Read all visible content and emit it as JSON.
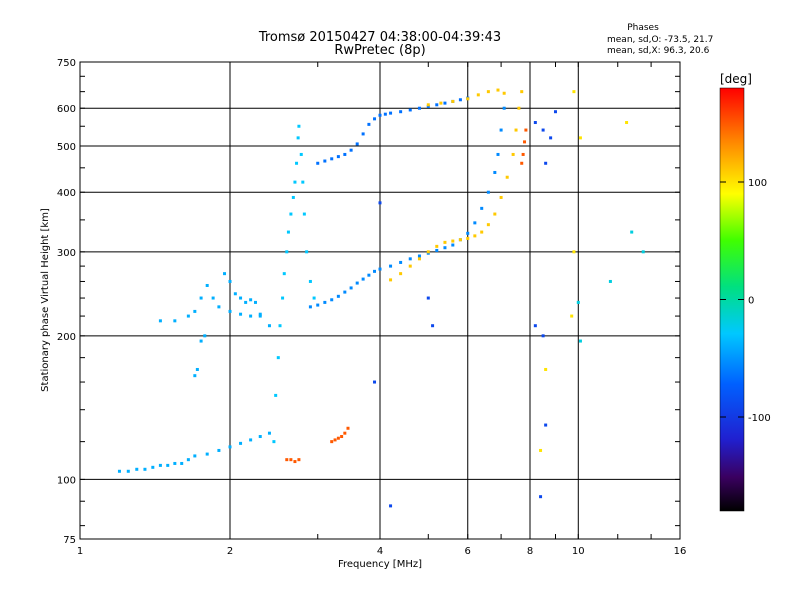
{
  "chart_data": {
    "type": "scatter",
    "title": "Tromsø 20150427 04:38:00-04:39:43",
    "subtitle": "RwPretec (8p)",
    "xlabel": "Frequency [MHz]",
    "ylabel": "Stationary phase Virtual Height [km]",
    "x_scale": "log",
    "y_scale": "log",
    "xlim": [
      1,
      16
    ],
    "ylim": [
      75,
      750
    ],
    "x_ticks": [
      1,
      2,
      4,
      6,
      8,
      10,
      16
    ],
    "x_tick_labels": [
      "1",
      "2",
      "4",
      "6",
      "8",
      "10",
      "16"
    ],
    "y_ticks": [
      75,
      100,
      200,
      300,
      400,
      500,
      600,
      750
    ],
    "y_tick_labels": [
      "75",
      "100",
      "200",
      "300",
      "400",
      "500",
      "600",
      "750"
    ],
    "grid": true,
    "stats": {
      "title": "Phases",
      "line1": "mean, sd,O: -73.5, 21.7",
      "line2": "mean, sd,X:  96.3, 20.6"
    },
    "colorbar": {
      "label": "[deg]",
      "ticks": [
        100,
        0,
        -100
      ],
      "tick_labels": [
        "100",
        "0",
        "-100"
      ],
      "range": [
        -180,
        180
      ]
    },
    "series": [
      {
        "phase": -40,
        "points": [
          [
            1.2,
            104
          ],
          [
            1.25,
            104
          ],
          [
            1.3,
            105
          ],
          [
            1.35,
            105
          ],
          [
            1.4,
            106
          ],
          [
            1.45,
            107
          ],
          [
            1.5,
            107
          ],
          [
            1.55,
            108
          ],
          [
            1.6,
            108
          ],
          [
            1.65,
            110
          ],
          [
            1.7,
            112
          ],
          [
            1.8,
            113
          ],
          [
            1.9,
            115
          ],
          [
            2.0,
            117
          ],
          [
            2.1,
            119
          ],
          [
            2.2,
            121
          ],
          [
            2.3,
            123
          ],
          [
            2.4,
            125
          ]
        ]
      },
      {
        "phase": -40,
        "points": [
          [
            1.45,
            215
          ],
          [
            1.55,
            215
          ],
          [
            1.65,
            220
          ],
          [
            1.7,
            225
          ],
          [
            1.75,
            240
          ],
          [
            1.8,
            255
          ],
          [
            1.85,
            240
          ],
          [
            1.9,
            230
          ],
          [
            2.0,
            225
          ],
          [
            2.1,
            222
          ],
          [
            2.2,
            220
          ],
          [
            2.3,
            222
          ]
        ]
      },
      {
        "phase": -40,
        "points": [
          [
            1.7,
            165
          ],
          [
            1.72,
            170
          ],
          [
            1.75,
            195
          ],
          [
            1.78,
            200
          ],
          [
            1.95,
            270
          ],
          [
            2.0,
            260
          ],
          [
            2.05,
            245
          ],
          [
            2.1,
            240
          ],
          [
            2.15,
            235
          ],
          [
            2.2,
            238
          ],
          [
            2.25,
            235
          ],
          [
            2.3,
            220
          ],
          [
            2.4,
            210
          ]
        ]
      },
      {
        "phase": -30,
        "points": [
          [
            2.45,
            120
          ],
          [
            2.47,
            150
          ],
          [
            2.5,
            180
          ],
          [
            2.52,
            210
          ],
          [
            2.55,
            240
          ],
          [
            2.57,
            270
          ],
          [
            2.6,
            300
          ],
          [
            2.62,
            330
          ],
          [
            2.65,
            360
          ],
          [
            2.68,
            390
          ],
          [
            2.7,
            420
          ],
          [
            2.72,
            460
          ],
          [
            2.74,
            520
          ],
          [
            2.75,
            550
          ],
          [
            2.78,
            480
          ],
          [
            2.8,
            420
          ],
          [
            2.82,
            360
          ],
          [
            2.85,
            300
          ],
          [
            2.9,
            260
          ],
          [
            2.95,
            240
          ]
        ]
      },
      {
        "phase": -55,
        "points": [
          [
            2.9,
            230
          ],
          [
            3.0,
            232
          ],
          [
            3.1,
            235
          ],
          [
            3.2,
            238
          ],
          [
            3.3,
            242
          ],
          [
            3.4,
            247
          ],
          [
            3.5,
            252
          ],
          [
            3.6,
            258
          ],
          [
            3.7,
            263
          ],
          [
            3.8,
            268
          ],
          [
            3.9,
            273
          ],
          [
            4.0,
            276
          ],
          [
            4.2,
            280
          ],
          [
            4.4,
            285
          ],
          [
            4.6,
            290
          ],
          [
            4.8,
            294
          ],
          [
            5.0,
            298
          ],
          [
            5.2,
            302
          ],
          [
            5.4,
            306
          ],
          [
            5.6,
            310
          ],
          [
            5.8,
            318
          ],
          [
            6.0,
            328
          ],
          [
            6.2,
            345
          ],
          [
            6.4,
            370
          ],
          [
            6.6,
            400
          ],
          [
            6.8,
            440
          ],
          [
            6.9,
            480
          ],
          [
            7.0,
            540
          ],
          [
            7.1,
            600
          ]
        ]
      },
      {
        "phase": -65,
        "points": [
          [
            3.0,
            460
          ],
          [
            3.1,
            465
          ],
          [
            3.2,
            470
          ],
          [
            3.3,
            475
          ],
          [
            3.4,
            480
          ],
          [
            3.5,
            490
          ],
          [
            3.6,
            505
          ],
          [
            3.7,
            530
          ],
          [
            3.8,
            555
          ],
          [
            3.9,
            570
          ],
          [
            4.0,
            580
          ],
          [
            4.1,
            583
          ],
          [
            4.2,
            586
          ],
          [
            4.4,
            590
          ],
          [
            4.6,
            595
          ],
          [
            4.8,
            600
          ],
          [
            5.0,
            605
          ],
          [
            5.2,
            610
          ],
          [
            5.4,
            615
          ],
          [
            5.6,
            620
          ],
          [
            5.8,
            625
          ],
          [
            6.0,
            630
          ]
        ]
      },
      {
        "phase": 110,
        "points": [
          [
            4.2,
            262
          ],
          [
            4.4,
            270
          ],
          [
            4.6,
            280
          ],
          [
            4.8,
            290
          ],
          [
            5.0,
            300
          ],
          [
            5.2,
            308
          ],
          [
            5.4,
            314
          ],
          [
            5.6,
            316
          ],
          [
            5.8,
            318
          ],
          [
            6.0,
            320
          ],
          [
            6.2,
            324
          ],
          [
            6.4,
            330
          ],
          [
            6.6,
            342
          ],
          [
            6.8,
            360
          ],
          [
            7.0,
            390
          ],
          [
            7.2,
            430
          ],
          [
            7.4,
            480
          ],
          [
            7.5,
            540
          ],
          [
            7.6,
            600
          ],
          [
            7.7,
            650
          ]
        ]
      },
      {
        "phase": 110,
        "points": [
          [
            5.0,
            610
          ],
          [
            5.3,
            615
          ],
          [
            5.6,
            620
          ],
          [
            6.0,
            628
          ],
          [
            6.3,
            640
          ],
          [
            6.6,
            650
          ],
          [
            6.9,
            655
          ],
          [
            7.1,
            645
          ]
        ]
      },
      {
        "phase": 150,
        "points": [
          [
            3.2,
            120
          ],
          [
            3.25,
            121
          ],
          [
            3.3,
            122
          ],
          [
            3.35,
            123
          ],
          [
            3.4,
            125
          ],
          [
            3.45,
            128
          ],
          [
            2.6,
            110
          ],
          [
            2.65,
            110
          ],
          [
            2.7,
            109
          ],
          [
            2.75,
            110
          ],
          [
            7.7,
            460
          ],
          [
            7.75,
            480
          ],
          [
            7.8,
            510
          ],
          [
            7.85,
            540
          ]
        ]
      },
      {
        "phase": -90,
        "points": [
          [
            8.2,
            560
          ],
          [
            8.5,
            540
          ],
          [
            8.8,
            520
          ],
          [
            9.0,
            590
          ],
          [
            8.6,
            460
          ],
          [
            8.5,
            200
          ],
          [
            8.6,
            130
          ],
          [
            8.4,
            92
          ],
          [
            4.2,
            88
          ],
          [
            3.9,
            160
          ],
          [
            4.0,
            380
          ],
          [
            5.0,
            240
          ],
          [
            5.1,
            210
          ],
          [
            8.2,
            210
          ]
        ]
      },
      {
        "phase": 100,
        "points": [
          [
            9.8,
            650
          ],
          [
            10.1,
            520
          ],
          [
            12.5,
            560
          ],
          [
            9.8,
            300
          ],
          [
            9.7,
            220
          ],
          [
            8.6,
            170
          ],
          [
            8.4,
            115
          ]
        ]
      },
      {
        "phase": -20,
        "points": [
          [
            13.5,
            300
          ],
          [
            12.8,
            330
          ],
          [
            11.6,
            260
          ],
          [
            10.1,
            195
          ],
          [
            10.0,
            235
          ]
        ]
      }
    ]
  }
}
